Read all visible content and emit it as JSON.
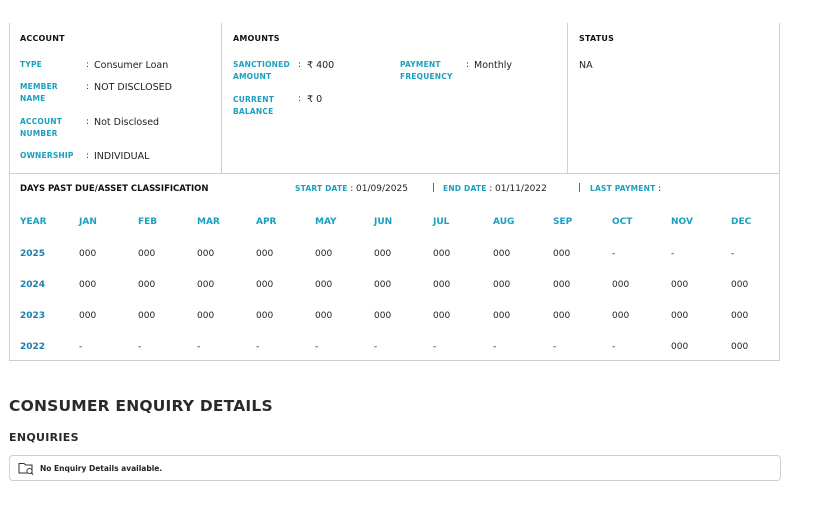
{
  "account": {
    "title": "ACCOUNT",
    "fields": [
      {
        "label": [
          "TYPE"
        ],
        "value": "Consumer Loan"
      },
      {
        "label": [
          "MEMBER",
          "NAME"
        ],
        "value": "NOT DISCLOSED"
      },
      {
        "label": [
          "ACCOUNT",
          "NUMBER"
        ],
        "value": "Not Disclosed"
      },
      {
        "label": [
          "OWNERSHIP"
        ],
        "value": "INDIVIDUAL"
      }
    ]
  },
  "amounts": {
    "title": "AMOUNTS",
    "sanctioned_label": [
      "SANCTIONED",
      "AMOUNT"
    ],
    "sanctioned_value": "₹ 400",
    "current_label": [
      "CURRENT",
      "BALANCE"
    ],
    "current_value": "₹ 0",
    "frequency_label": [
      "PAYMENT",
      "FREQUENCY"
    ],
    "frequency_value": "Monthly"
  },
  "status": {
    "title": "STATUS",
    "value": "NA"
  },
  "colon": ":",
  "dpd": {
    "title": "DAYS PAST DUE/ASSET CLASSIFICATION",
    "start_label": "START DATE",
    "start_value": "01/09/2025",
    "end_label": "END DATE",
    "end_value": "01/11/2022",
    "last_payment_label": "LAST PAYMENT",
    "last_payment_value": "",
    "separator": "|",
    "headers": [
      "YEAR",
      "JAN",
      "FEB",
      "MAR",
      "APR",
      "MAY",
      "JUN",
      "JUL",
      "AUG",
      "SEP",
      "OCT",
      "NOV",
      "DEC"
    ],
    "rows": [
      {
        "year": "2025",
        "values": [
          "000",
          "000",
          "000",
          "000",
          "000",
          "000",
          "000",
          "000",
          "000",
          "-",
          "-",
          "-"
        ]
      },
      {
        "year": "2024",
        "values": [
          "000",
          "000",
          "000",
          "000",
          "000",
          "000",
          "000",
          "000",
          "000",
          "000",
          "000",
          "000"
        ]
      },
      {
        "year": "2023",
        "values": [
          "000",
          "000",
          "000",
          "000",
          "000",
          "000",
          "000",
          "000",
          "000",
          "000",
          "000",
          "000"
        ]
      },
      {
        "year": "2022",
        "values": [
          "-",
          "-",
          "-",
          "-",
          "-",
          "-",
          "-",
          "-",
          "-",
          "-",
          "000",
          "000"
        ]
      }
    ]
  },
  "enquiry": {
    "title": "CONSUMER ENQUIRY DETAILS",
    "subtitle": "ENQUIRIES",
    "empty_message": "No Enquiry Details available.",
    "icon": "folder-search-icon"
  }
}
